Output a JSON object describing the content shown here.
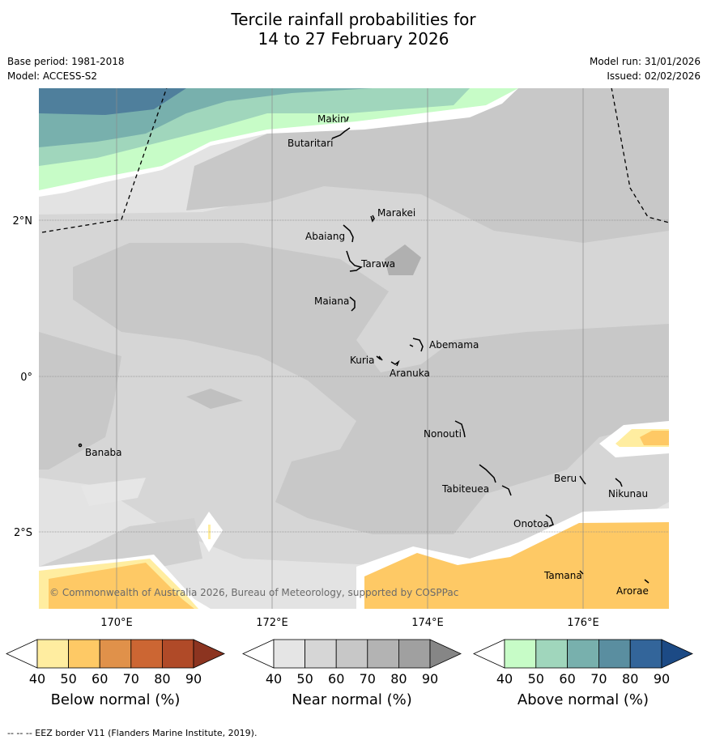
{
  "title": {
    "line1": "Tercile rainfall probabilities for",
    "line2": "14 to 27 February 2026"
  },
  "meta": {
    "base_period": "Base period: 1981-2018",
    "model": "Model: ACCESS-S2",
    "model_run": "Model run: 31/01/2026",
    "issued": "Issued: 02/02/2026"
  },
  "map": {
    "copyright": "© Commonwealth of Australia 2026, Bureau of Meteorology, supported by COSPPac",
    "lat_labels": [
      "2°N",
      "0°",
      "2°S"
    ],
    "lon_labels": [
      "170°E",
      "172°E",
      "174°E",
      "176°E"
    ],
    "islands": [
      "Makin",
      "Butaritari",
      "Marakei",
      "Abaiang",
      "Tarawa",
      "Maiana",
      "Abemama",
      "Kuria",
      "Aranuka",
      "Banaba",
      "Nonouti",
      "Tabiteuea",
      "Beru",
      "Nikunau",
      "Onotoa",
      "Tamana",
      "Arorae"
    ]
  },
  "colorbars": [
    {
      "title": "Below normal (%)",
      "ticks": [
        "40",
        "50",
        "60",
        "70",
        "80",
        "90"
      ],
      "colors": [
        "#ffffff",
        "#ffeda0",
        "#fec965",
        "#e0914a",
        "#cc6633",
        "#b04a28",
        "#8c3420"
      ]
    },
    {
      "title": "Near normal (%)",
      "ticks": [
        "40",
        "50",
        "60",
        "70",
        "80",
        "90"
      ],
      "colors": [
        "#ffffff",
        "#e5e5e5",
        "#d6d6d6",
        "#c7c7c7",
        "#b3b3b3",
        "#a0a0a0",
        "#868686"
      ]
    },
    {
      "title": "Above normal (%)",
      "ticks": [
        "40",
        "50",
        "60",
        "70",
        "80",
        "90"
      ],
      "colors": [
        "#ffffff",
        "#c7fcc7",
        "#a0d6bc",
        "#78b0ad",
        "#5a8ea0",
        "#33659a",
        "#1c4a85"
      ]
    }
  ],
  "footer": "--  --  -- EEZ border V11 (Flanders Marine Institute, 2019).",
  "colors": {
    "near_light": "#e0e0e0",
    "near_mid": "#d6d6d6",
    "near_dark": "#c6c6c6",
    "above_50": "#c7fcc7",
    "above_60": "#a0d6bc",
    "above_70": "#78b0ad",
    "above_80": "#5a8ea0",
    "below_50": "#ffeda0",
    "below_60": "#fec965"
  }
}
